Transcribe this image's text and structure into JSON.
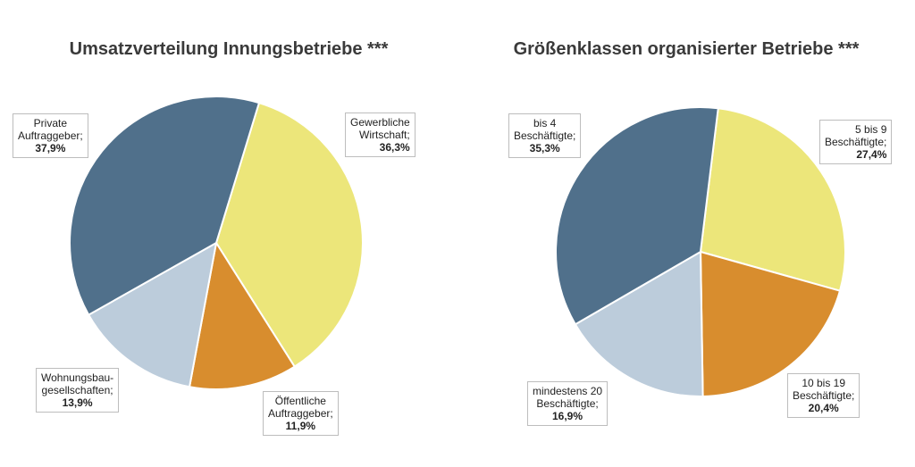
{
  "chart_data": [
    {
      "type": "pie",
      "title": "Umsatzverteilung Innungsbetriebe ***",
      "slices": [
        {
          "label": "Gewerbliche\nWirtschaft;",
          "pct_label": "36,3%",
          "value": 36.3,
          "color": "#ECE67A"
        },
        {
          "label": "Öffentliche\nAuftraggeber;",
          "pct_label": "11,9%",
          "value": 11.9,
          "color": "#D88D2E"
        },
        {
          "label": "Wohnungsbau-\ngesellschaften;",
          "pct_label": "13,9%",
          "value": 13.9,
          "color": "#BCCCDB"
        },
        {
          "label": "Private\nAuftraggeber;",
          "pct_label": "37,9%",
          "value": 37.9,
          "color": "#50708B"
        }
      ]
    },
    {
      "type": "pie",
      "title": "Größenklassen organisierter Betriebe ***",
      "slices": [
        {
          "label": "5 bis 9\nBeschäftigte;",
          "pct_label": "27,4%",
          "value": 27.4,
          "color": "#ECE67A"
        },
        {
          "label": "10 bis 19\nBeschäftigte;",
          "pct_label": "20,4%",
          "value": 20.4,
          "color": "#D88D2E"
        },
        {
          "label": "mindestens 20\nBeschäftigte;",
          "pct_label": "16,9%",
          "value": 16.9,
          "color": "#BCCCDB"
        },
        {
          "label": "bis 4\nBeschäftigte;",
          "pct_label": "35,3%",
          "value": 35.3,
          "color": "#50708B"
        }
      ]
    }
  ]
}
